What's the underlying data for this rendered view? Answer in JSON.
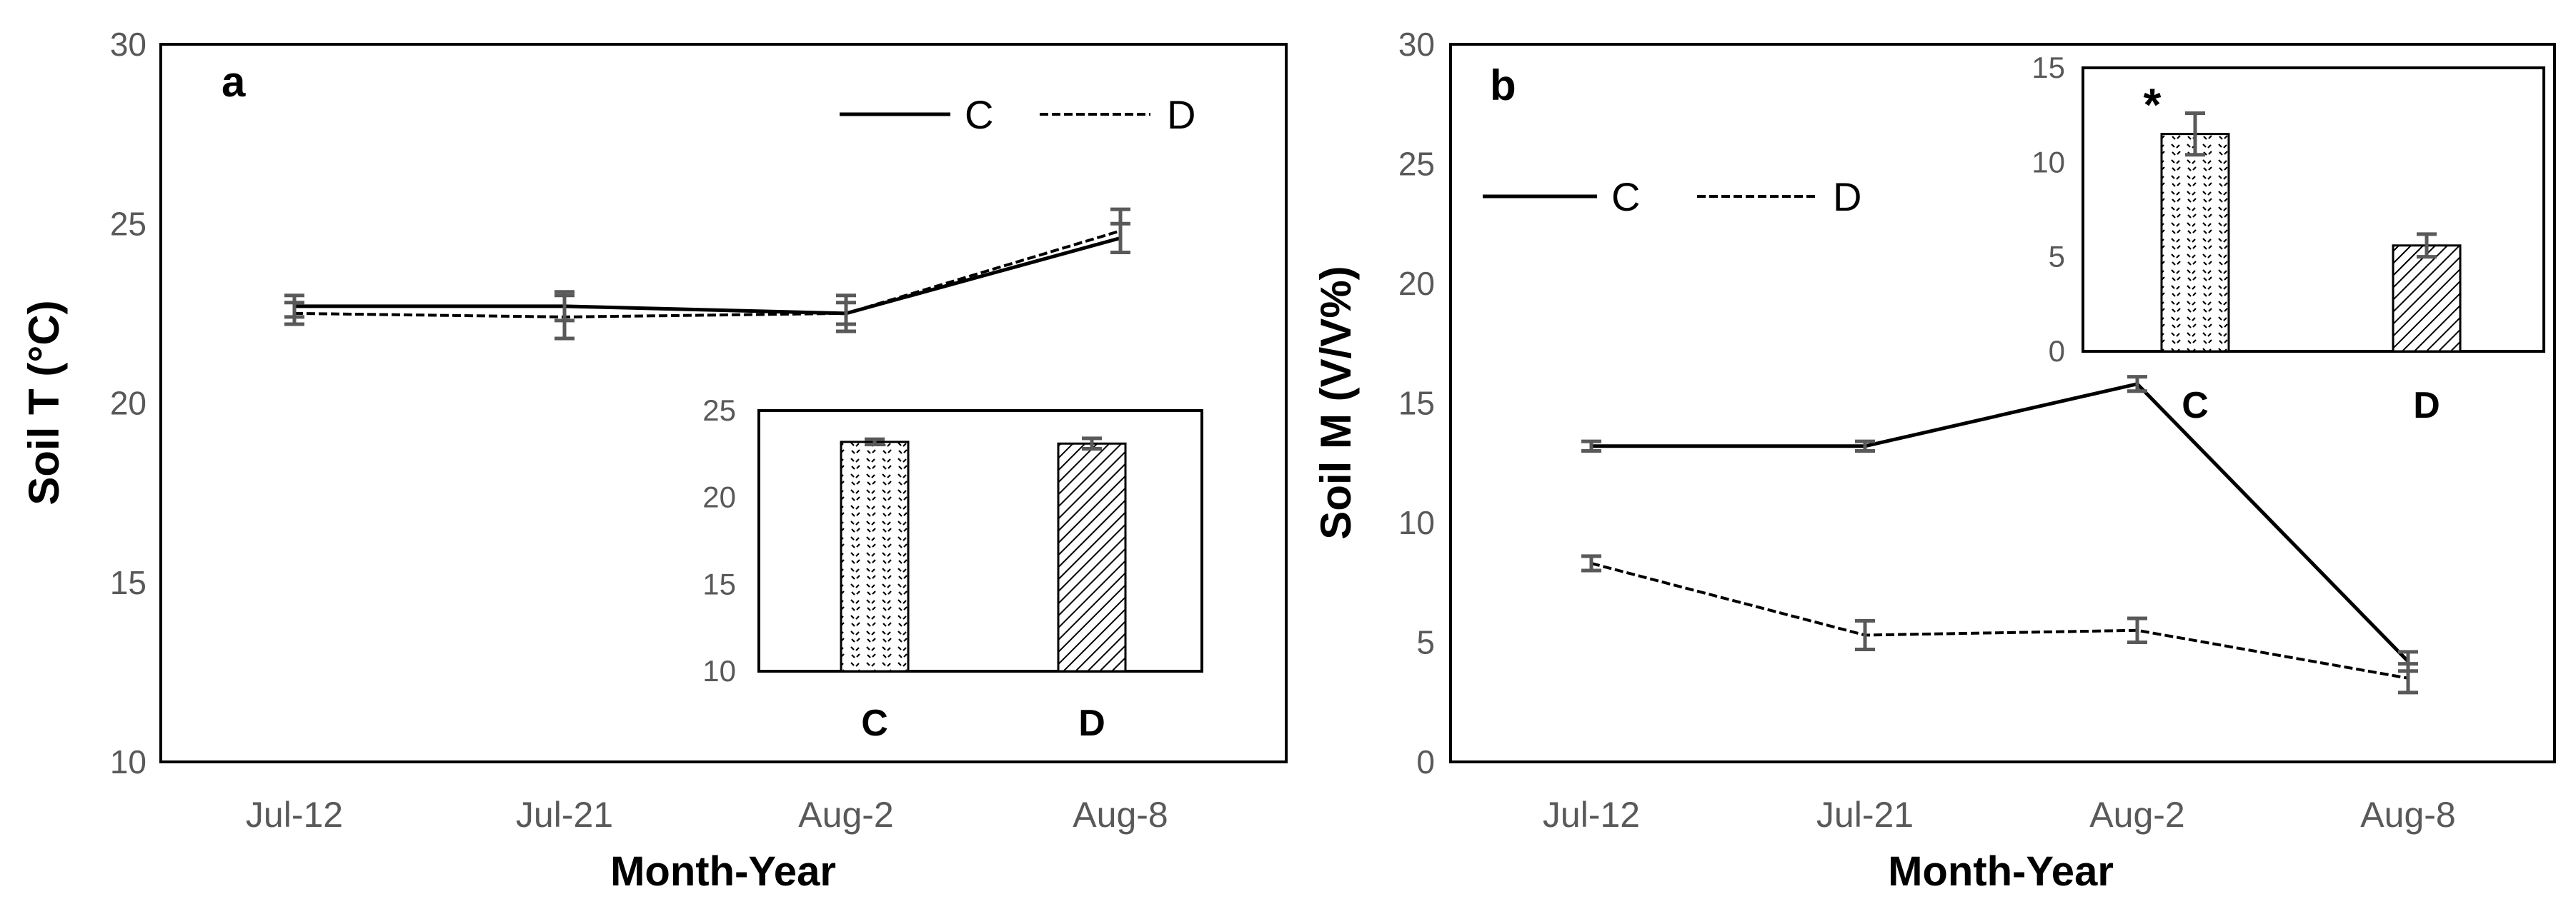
{
  "chart_data": [
    {
      "panel": "a",
      "type": "line",
      "categories": [
        "Jul-12",
        "Jul-21",
        "Aug-2",
        "Aug-8"
      ],
      "xlabel": "Month-Year",
      "ylabel": "Soil T (°C)",
      "ylim": [
        10,
        30
      ],
      "yticks": [
        "10",
        "15",
        "20",
        "25",
        "30"
      ],
      "legend_position": "top-right",
      "series": [
        {
          "name": "C",
          "style": "solid",
          "values": [
            22.7,
            22.7,
            22.5,
            24.6
          ],
          "errors": [
            0.3,
            0.4,
            0.3,
            0.4
          ]
        },
        {
          "name": "D",
          "style": "dashed",
          "values": [
            22.5,
            22.4,
            22.5,
            24.8
          ],
          "errors": [
            0.3,
            0.6,
            0.5,
            0.6
          ]
        }
      ],
      "inset": {
        "type": "bar",
        "legend_position": "bottom-right",
        "categories": [
          "C",
          "D"
        ],
        "values": [
          23.2,
          23.1
        ],
        "errors": [
          0.15,
          0.3
        ],
        "ylim": [
          10,
          25
        ],
        "yticks": [
          "10",
          "15",
          "20",
          "25"
        ]
      }
    },
    {
      "panel": "b",
      "type": "line",
      "categories": [
        "Jul-12",
        "Jul-21",
        "Aug-2",
        "Aug-8"
      ],
      "xlabel": "Month-Year",
      "ylabel": "Soil M (V/V%)",
      "ylim": [
        0,
        30
      ],
      "yticks": [
        "0",
        "5",
        "10",
        "15",
        "20",
        "25",
        "30"
      ],
      "legend_position": "upper-left",
      "series": [
        {
          "name": "C",
          "style": "solid",
          "values": [
            13.2,
            13.2,
            15.8,
            4.2
          ],
          "errors": [
            0.2,
            0.2,
            0.3,
            0.4
          ]
        },
        {
          "name": "D",
          "style": "dashed",
          "values": [
            8.3,
            5.3,
            5.5,
            3.5
          ],
          "errors": [
            0.3,
            0.6,
            0.5,
            0.6
          ]
        }
      ],
      "inset": {
        "type": "bar",
        "legend_position": "top-right",
        "categories": [
          "C",
          "D"
        ],
        "values": [
          11.5,
          5.6
        ],
        "errors": [
          1.1,
          0.6
        ],
        "ylim": [
          0,
          15
        ],
        "yticks": [
          "0",
          "5",
          "10",
          "15"
        ],
        "annotation": "*"
      }
    }
  ],
  "colors": {
    "line": "#000000",
    "error_bar": "#595959",
    "frame": "#000000",
    "tick_text": "#595959"
  }
}
